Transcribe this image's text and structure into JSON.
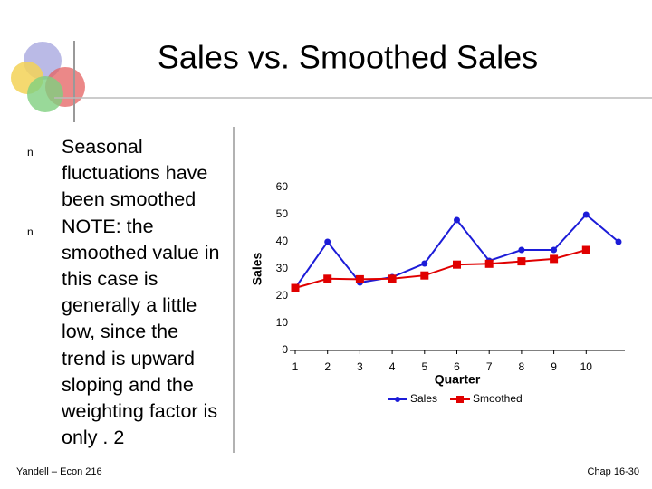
{
  "slide": {
    "title": "Sales vs. Smoothed Sales",
    "bullets": [
      {
        "marker": "n",
        "text": "Seasonal fluctuations have been smoothed"
      },
      {
        "marker": "n",
        "text": "NOTE:  the smoothed value in this case is generally a little low, since the trend is upward sloping and the weighting factor is only . 2"
      }
    ],
    "footer_left": "Yandell – Econ 216",
    "footer_right": "Chap 16-30"
  },
  "chart_data": {
    "type": "line",
    "x_label": "Quarter",
    "y_label": "Sales",
    "x": [
      1,
      2,
      3,
      4,
      5,
      6,
      7,
      8,
      9,
      10,
      11
    ],
    "xlim": [
      1,
      11
    ],
    "xticks": [
      1,
      2,
      3,
      4,
      5,
      6,
      7,
      8,
      9,
      10
    ],
    "ylim": [
      0,
      60
    ],
    "yticks": [
      0,
      10,
      20,
      30,
      40,
      50,
      60
    ],
    "grid": false,
    "legend": "bottom",
    "series": [
      {
        "name": "Sales",
        "color": "#1c1cd8",
        "marker": "circle",
        "values": [
          23,
          40,
          25,
          27,
          32,
          48,
          33,
          37,
          37,
          50,
          40
        ]
      },
      {
        "name": "Smoothed",
        "color": "#e00000",
        "marker": "square",
        "values": [
          23,
          26.4,
          26.2,
          26.4,
          27.6,
          31.6,
          31.9,
          32.8,
          33.7,
          37,
          null
        ]
      }
    ]
  }
}
